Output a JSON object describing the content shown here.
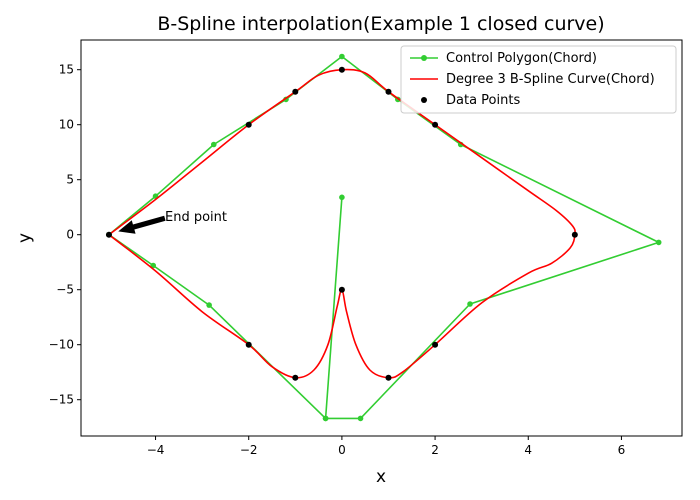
{
  "chart_data": {
    "type": "line",
    "title": "B-Spline interpolation(Example 1 closed curve)",
    "xlabel": "x",
    "ylabel": "y",
    "xlim": [
      -5.6,
      7.3
    ],
    "ylim": [
      -18.3,
      17.7
    ],
    "xticks": [
      -4,
      -2,
      0,
      2,
      4,
      6
    ],
    "yticks": [
      -15,
      -10,
      -5,
      0,
      5,
      10,
      15
    ],
    "grid": false,
    "legend_position": "upper-right",
    "series": [
      {
        "name": "Control Polygon(Chord)",
        "kind": "line-marker",
        "color": "#32cd32",
        "x": [
          -5,
          -4.0,
          -2.75,
          -1.2,
          0,
          1.2,
          2.55,
          6.8,
          2.75,
          0.4,
          -0.35,
          0,
          -0.35,
          -2.85,
          -4.05,
          -5
        ],
        "y": [
          0,
          3.5,
          8.2,
          12.3,
          16.2,
          12.3,
          8.2,
          -0.7,
          -6.3,
          -16.7,
          -16.7,
          3.4,
          -16.7,
          -6.4,
          -2.8,
          0
        ]
      },
      {
        "name": "Degree 3 B-Spline Curve(Chord)",
        "kind": "curve",
        "color": "#ff0000",
        "x": [
          -5,
          -4.0,
          -3.0,
          -2.0,
          -1.0,
          -0.5,
          0,
          0.5,
          1.0,
          2.0,
          3.0,
          4.0,
          4.6,
          4.95,
          5.0,
          4.9,
          4.5,
          4.0,
          3.0,
          2.0,
          1.3,
          1.0,
          0.6,
          0.3,
          0.1,
          0,
          -0.1,
          -0.3,
          -0.6,
          -1.0,
          -1.5,
          -2.0,
          -3.0,
          -4.0,
          -5.0
        ],
        "y": [
          0,
          3.2,
          6.6,
          10.0,
          13.0,
          14.5,
          15.0,
          14.7,
          13.0,
          10.0,
          7.0,
          4.0,
          2.2,
          0.8,
          0,
          -1.2,
          -2.6,
          -3.5,
          -6.2,
          -10.0,
          -12.5,
          -13.0,
          -12.3,
          -10.0,
          -7.0,
          -5.0,
          -6.5,
          -10.0,
          -12.3,
          -13.0,
          -12.0,
          -10.0,
          -7.0,
          -3.3,
          0
        ]
      },
      {
        "name": "Data Points",
        "kind": "scatter",
        "color": "#000000",
        "x": [
          -5,
          -2,
          -1,
          0,
          1,
          2,
          5,
          2,
          1,
          0,
          -1,
          -2
        ],
        "y": [
          0,
          10,
          13,
          15,
          13,
          10,
          0,
          -10,
          -13,
          -5,
          -13,
          -10
        ]
      }
    ],
    "annotation": {
      "text": "End point",
      "xy": [
        -4.8,
        0.3
      ],
      "xytext": [
        -3.8,
        1.5
      ]
    }
  }
}
